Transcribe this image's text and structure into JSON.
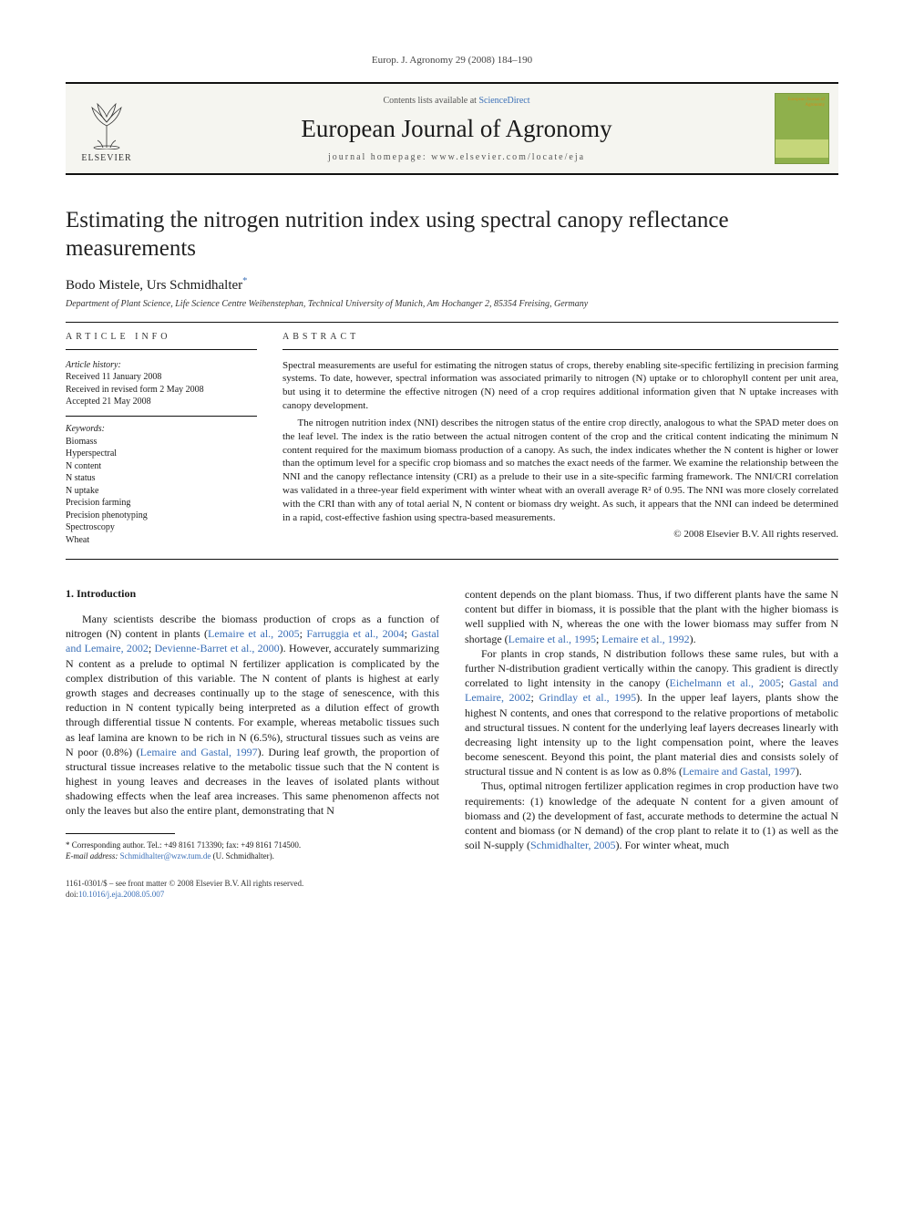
{
  "header": {
    "running_head": "Europ. J. Agronomy 29 (2008) 184–190"
  },
  "masthead": {
    "publisher": "ELSEVIER",
    "contents_prefix": "Contents lists available at ",
    "contents_link": "ScienceDirect",
    "journal_title": "European Journal of Agronomy",
    "homepage_prefix": "journal homepage: ",
    "homepage_url": "www.elsevier.com/locate/eja",
    "cover_text": "European\nJournal of\nAgronomy"
  },
  "article": {
    "title": "Estimating the nitrogen nutrition index using spectral canopy reflectance measurements",
    "authors_html": "Bodo Mistele, Urs Schmidhalter",
    "corr_mark": "*",
    "affiliation": "Department of Plant Science, Life Science Centre Weihenstephan, Technical University of Munich, Am Hochanger 2, 85354 Freising, Germany"
  },
  "article_info": {
    "heading": "article info",
    "history_head": "Article history:",
    "history": [
      "Received 11 January 2008",
      "Received in revised form 2 May 2008",
      "Accepted 21 May 2008"
    ],
    "keywords_head": "Keywords:",
    "keywords": [
      "Biomass",
      "Hyperspectral",
      "N content",
      "N status",
      "N uptake",
      "Precision farming",
      "Precision phenotyping",
      "Spectroscopy",
      "Wheat"
    ]
  },
  "abstract": {
    "heading": "abstract",
    "paragraphs": [
      "Spectral measurements are useful for estimating the nitrogen status of crops, thereby enabling site-specific fertilizing in precision farming systems. To date, however, spectral information was associated primarily to nitrogen (N) uptake or to chlorophyll content per unit area, but using it to determine the effective nitrogen (N) need of a crop requires additional information given that N uptake increases with canopy development.",
      "The nitrogen nutrition index (NNI) describes the nitrogen status of the entire crop directly, analogous to what the SPAD meter does on the leaf level. The index is the ratio between the actual nitrogen content of the crop and the critical content indicating the minimum N content required for the maximum biomass production of a canopy. As such, the index indicates whether the N content is higher or lower than the optimum level for a specific crop biomass and so matches the exact needs of the farmer. We examine the relationship between the NNI and the canopy reflectance intensity (CRI) as a prelude to their use in a site-specific farming framework. The NNI/CRI correlation was validated in a three-year field experiment with winter wheat with an overall average R² of 0.95. The NNI was more closely correlated with the CRI than with any of total aerial N, N content or biomass dry weight. As such, it appears that the NNI can indeed be determined in a rapid, cost-effective fashion using spectra-based measurements."
    ],
    "copyright": "© 2008 Elsevier B.V. All rights reserved."
  },
  "body": {
    "intro_head": "1.  Introduction",
    "col1_paras": [
      "Many scientists describe the biomass production of crops as a function of nitrogen (N) content in plants (Lemaire et al., 2005; Farruggia et al., 2004; Gastal and Lemaire, 2002; Devienne-Barret et al., 2000). However, accurately summarizing N content as a prelude to optimal N fertilizer application is complicated by the complex distribution of this variable. The N content of plants is highest at early growth stages and decreases continually up to the stage of senescence, with this reduction in N content typically being interpreted as a dilution effect of growth through differential tissue N contents. For example, whereas metabolic tissues such as leaf lamina are known to be rich in N (6.5%), structural tissues such as veins are N poor (0.8%) (Lemaire and Gastal, 1997). During leaf growth, the proportion of structural tissue increases relative to the metabolic tissue such that the N content is highest in young leaves and decreases in the leaves of isolated plants without shadowing effects when the leaf area increases. This same phenomenon affects not only the leaves but also the entire plant, demonstrating that N"
    ],
    "col2_paras": [
      "content depends on the plant biomass. Thus, if two different plants have the same N content but differ in biomass, it is possible that the plant with the higher biomass is well supplied with N, whereas the one with the lower biomass may suffer from N shortage (Lemaire et al., 1995; Lemaire et al., 1992).",
      "For plants in crop stands, N distribution follows these same rules, but with a further N-distribution gradient vertically within the canopy. This gradient is directly correlated to light intensity in the canopy (Eichelmann et al., 2005; Gastal and Lemaire, 2002; Grindlay et al., 1995). In the upper leaf layers, plants show the highest N contents, and ones that correspond to the relative proportions of metabolic and structural tissues. N content for the underlying leaf layers decreases linearly with decreasing light intensity up to the light compensation point, where the leaves become senescent. Beyond this point, the plant material dies and consists solely of structural tissue and N content is as low as 0.8% (Lemaire and Gastal, 1997).",
      "Thus, optimal nitrogen fertilizer application regimes in crop production have two requirements: (1) knowledge of the adequate N content for a given amount of biomass and (2) the development of fast, accurate methods to determine the actual N content and biomass (or N demand) of the crop plant to relate it to (1) as well as the soil N-supply (Schmidhalter, 2005). For winter wheat, much"
    ]
  },
  "footnote": {
    "corr_label": "* Corresponding author. Tel.: +49 8161 713390; fax: +49 8161 714500.",
    "email_label": "E-mail address: ",
    "email": "Schmidhalter@wzw.tum.de",
    "email_suffix": " (U. Schmidhalter)."
  },
  "footer": {
    "issn_line": "1161-0301/$ – see front matter © 2008 Elsevier B.V. All rights reserved.",
    "doi_prefix": "doi:",
    "doi": "10.1016/j.eja.2008.05.007"
  },
  "refs": {
    "c1": [
      "Lemaire et al., 2005",
      "Farruggia et al., 2004",
      "Gastal and Lemaire, 2002",
      "Devienne-Barret et al., 2000",
      "Lemaire and Gastal, 1997"
    ],
    "c2": [
      "Lemaire et al., 1995",
      "Lemaire et al., 1992",
      "Eichelmann et al., 2005",
      "Gastal and Lemaire, 2002",
      "Grindlay et al., 1995",
      "Lemaire and Gastal, 1997",
      "Schmidhalter, 2005"
    ]
  },
  "colors": {
    "link": "#3a6fb7",
    "masthead_bg": "#f5f5f0",
    "cover_bg": "#8fb04c",
    "cover_band": "#c5d67a",
    "cover_title": "#d48a1a",
    "rule": "#111111"
  },
  "typography": {
    "body_family": "Times New Roman, serif",
    "title_fontsize_pt": 19,
    "journal_fontsize_pt": 20,
    "body_fontsize_pt": 9,
    "abstract_fontsize_pt": 8
  }
}
